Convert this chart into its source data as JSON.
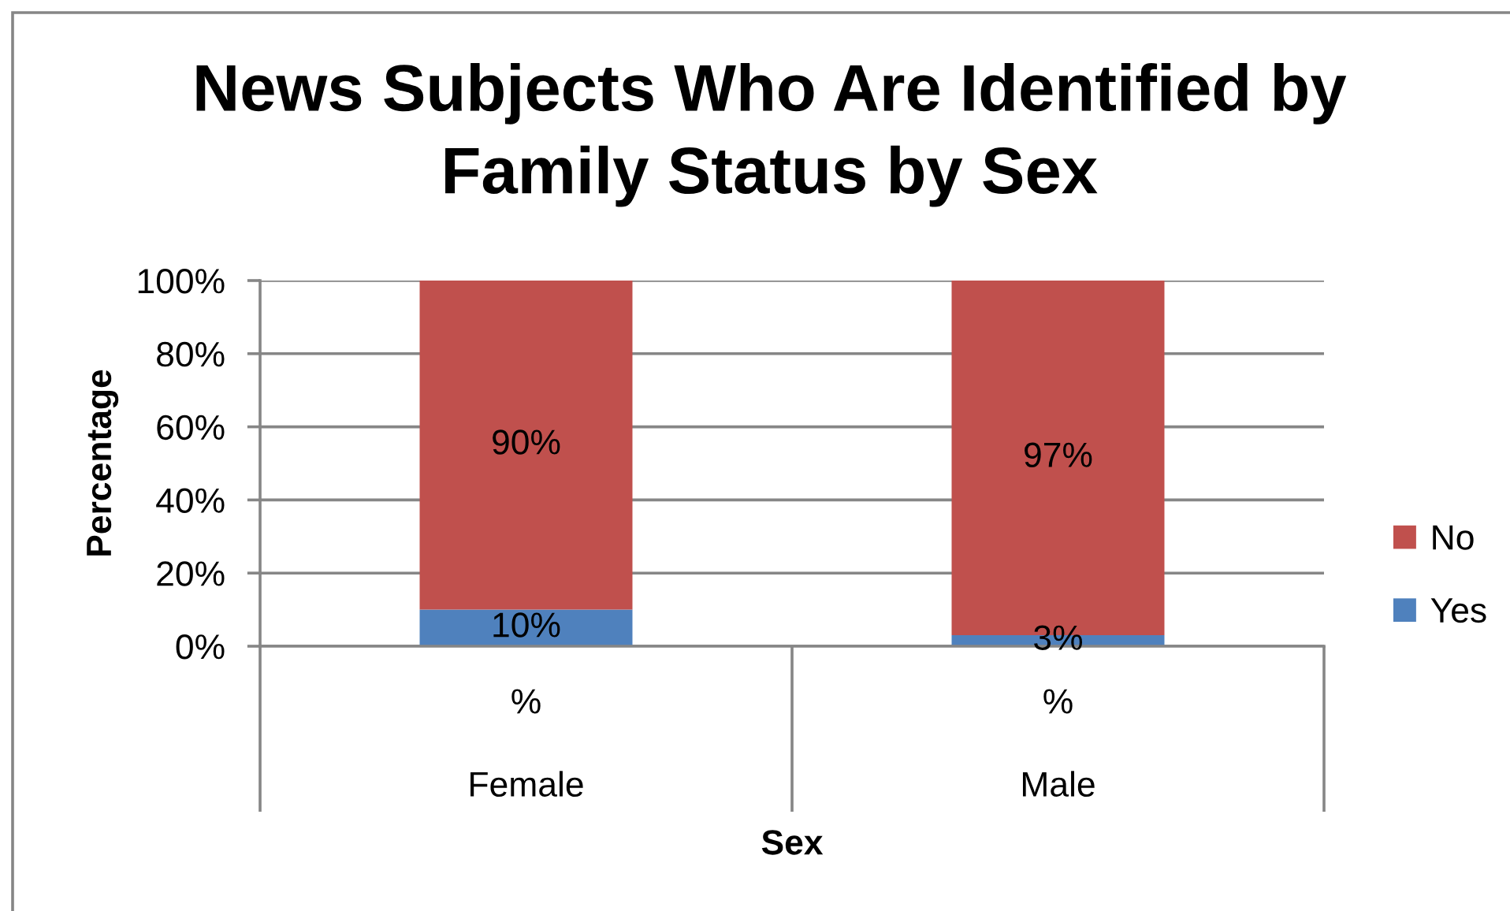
{
  "chart_data": {
    "type": "bar",
    "title": "News Subjects Who Are Identified by Family Status by Sex",
    "xlabel": "Sex",
    "ylabel": "Percentage",
    "categories": [
      "Female",
      "Male"
    ],
    "stacked": true,
    "series": [
      {
        "name": "Yes",
        "color": "#4f81bd",
        "values": [
          10,
          3
        ],
        "value_labels": [
          "10%",
          "3%"
        ]
      },
      {
        "name": "No",
        "color": "#c0504d",
        "values": [
          90,
          97
        ],
        "value_labels": [
          "90%",
          "97%"
        ]
      }
    ],
    "ylim": [
      0,
      100
    ],
    "yticks": [
      {
        "value": 0,
        "label": "0%"
      },
      {
        "value": 20,
        "label": "20%"
      },
      {
        "value": 40,
        "label": "40%"
      },
      {
        "value": 60,
        "label": "60%"
      },
      {
        "value": 80,
        "label": "80%"
      },
      {
        "value": 100,
        "label": "100%"
      }
    ],
    "grid": "y",
    "legend": "right",
    "annotations": [
      "%",
      "%"
    ]
  }
}
